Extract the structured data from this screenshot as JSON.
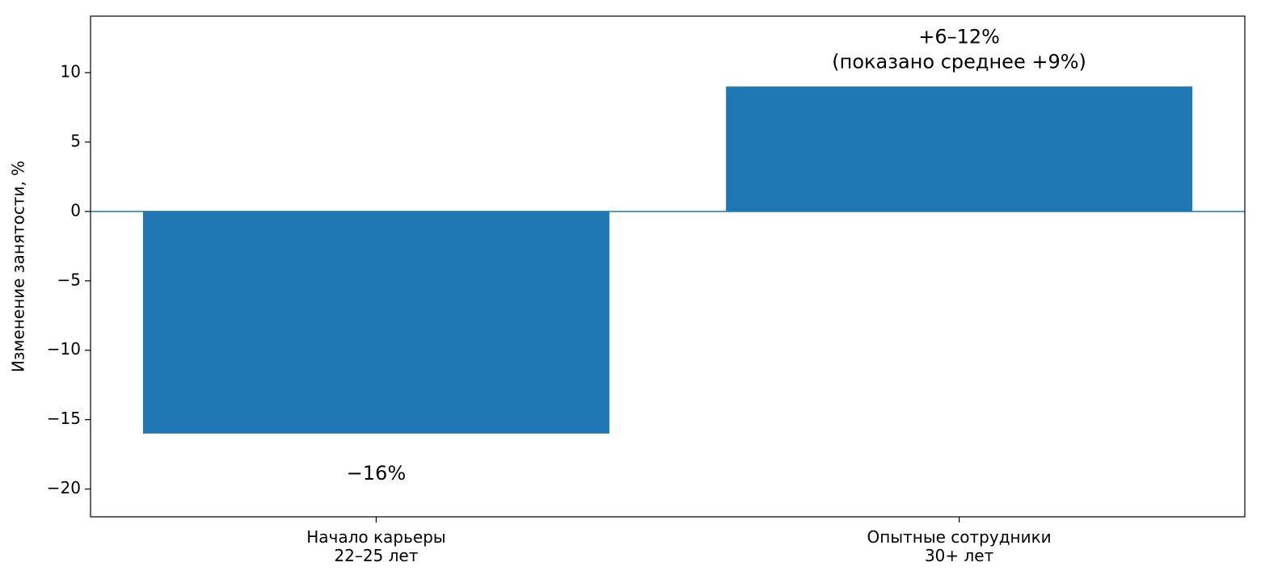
{
  "chart_data": {
    "type": "bar",
    "ylabel": "Изменение занятости, %",
    "categories": [
      "Начало карьеры\n22–25 лет",
      "Опытные сотрудники\n30+ лет"
    ],
    "values": [
      -16,
      9
    ],
    "value_labels": [
      "−16%",
      "+6–12%\n(показано среднее +9%)"
    ],
    "color": "#1f77b4",
    "hline": 0,
    "ylim": [
      -22,
      14.07
    ],
    "yticks": [
      {
        "value": -20,
        "label": "−20"
      },
      {
        "value": -15,
        "label": "−15"
      },
      {
        "value": -10,
        "label": "−10"
      },
      {
        "value": -5,
        "label": "−5"
      },
      0,
      5,
      10
    ]
  }
}
